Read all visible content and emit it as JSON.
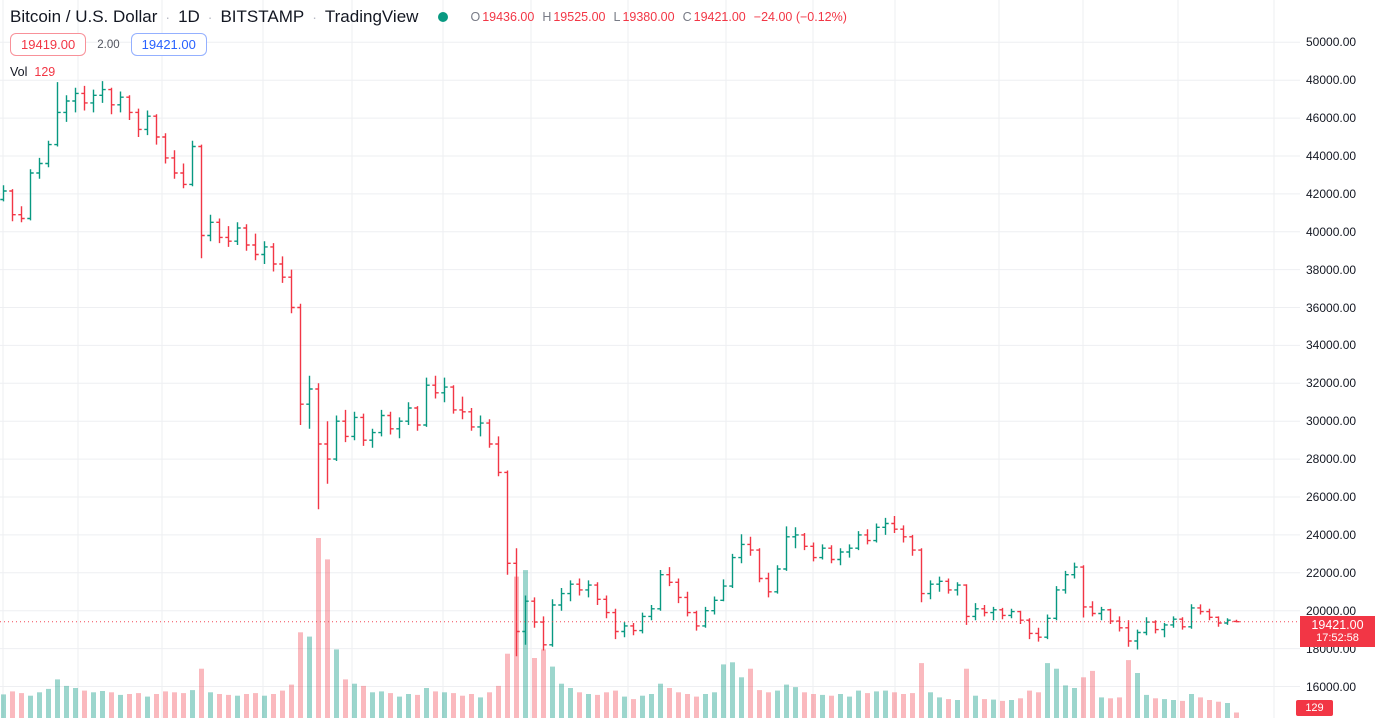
{
  "header": {
    "symbol": "Bitcoin / U.S. Dollar",
    "separator": "·",
    "interval": "1D",
    "exchange": "BITSTAMP",
    "platform": "TradingView",
    "ohlc": {
      "o_label": "O",
      "o": "19436.00",
      "h_label": "H",
      "h": "19525.00",
      "l_label": "L",
      "l": "19380.00",
      "c_label": "C",
      "c": "19421.00",
      "change": "−24.00 (−0.12%)"
    },
    "bid": "19419.00",
    "spread": "2.00",
    "ask": "19421.00",
    "vol_label": "Vol",
    "vol_value": "129"
  },
  "price_axis": {
    "tag_price": "19421.00",
    "tag_countdown": "17:52:58",
    "volume_tag": "129"
  },
  "colors": {
    "up": "#089981",
    "down": "#f23645",
    "volume_up": "rgba(8,153,129,0.40)",
    "volume_down": "rgba(242,54,69,0.35)",
    "grid": "#eeeff2",
    "text": "#131722",
    "accent_blue": "#2962ff",
    "status_dot": "#089981"
  },
  "chart_data": {
    "type": "ohlc-bar",
    "title": "Bitcoin / U.S. Dollar, 1D, BITSTAMP",
    "legend_position": "top-left",
    "grid": true,
    "price_axis_ticks": [
      50000,
      48000,
      46000,
      44000,
      42000,
      40000,
      38000,
      36000,
      34000,
      32000,
      30000,
      28000,
      26000,
      24000,
      22000,
      20000,
      18000,
      16000
    ],
    "ylim": [
      16000,
      50000
    ],
    "last_price": 19421.0,
    "change": -24.0,
    "change_pct": -0.12,
    "countdown": "17:52:58",
    "last_bar_volume": 129,
    "bars_ohlcv": [
      [
        41700,
        42450,
        41600,
        42150,
        550
      ],
      [
        42150,
        42250,
        40550,
        40900,
        620
      ],
      [
        40900,
        41350,
        40500,
        40700,
        580
      ],
      [
        40700,
        43300,
        40600,
        43100,
        520
      ],
      [
        43100,
        43900,
        42800,
        43600,
        600
      ],
      [
        43600,
        44800,
        43400,
        44600,
        680
      ],
      [
        44600,
        47900,
        44500,
        46300,
        900
      ],
      [
        46300,
        47200,
        45800,
        46900,
        750
      ],
      [
        46900,
        47600,
        46300,
        47300,
        700
      ],
      [
        47300,
        47700,
        46400,
        46800,
        640
      ],
      [
        46800,
        47500,
        46300,
        47200,
        600
      ],
      [
        47200,
        47950,
        46800,
        47500,
        630
      ],
      [
        47500,
        47600,
        46200,
        46700,
        600
      ],
      [
        46700,
        47400,
        46300,
        47100,
        540
      ],
      [
        47100,
        47200,
        45900,
        46300,
        560
      ],
      [
        46300,
        46500,
        45000,
        45400,
        580
      ],
      [
        45400,
        46400,
        45100,
        46100,
        500
      ],
      [
        46100,
        46200,
        44600,
        45000,
        560
      ],
      [
        45000,
        45200,
        43600,
        43900,
        620
      ],
      [
        43900,
        44300,
        42800,
        43100,
        600
      ],
      [
        43100,
        43600,
        42300,
        42500,
        580
      ],
      [
        42500,
        44800,
        42400,
        44500,
        650
      ],
      [
        44500,
        44600,
        38600,
        39800,
        1150
      ],
      [
        39800,
        40900,
        39500,
        40500,
        600
      ],
      [
        40500,
        40700,
        39400,
        39700,
        560
      ],
      [
        39700,
        40300,
        39200,
        39500,
        540
      ],
      [
        39500,
        40500,
        39300,
        40200,
        520
      ],
      [
        40200,
        40400,
        39000,
        39300,
        560
      ],
      [
        39300,
        39900,
        38500,
        38800,
        580
      ],
      [
        38800,
        39500,
        38300,
        39200,
        520
      ],
      [
        39200,
        39400,
        37900,
        38300,
        560
      ],
      [
        38300,
        38700,
        37300,
        37600,
        640
      ],
      [
        37600,
        38000,
        35700,
        36000,
        780
      ],
      [
        36000,
        36200,
        29800,
        30900,
        2000
      ],
      [
        30900,
        32400,
        29600,
        31700,
        1900
      ],
      [
        31700,
        32000,
        25350,
        28800,
        4200
      ],
      [
        28800,
        30000,
        26700,
        28000,
        3700
      ],
      [
        28000,
        30300,
        27900,
        30000,
        1600
      ],
      [
        30000,
        30600,
        28900,
        29200,
        900
      ],
      [
        29200,
        30500,
        29000,
        30200,
        800
      ],
      [
        30200,
        30400,
        28700,
        29000,
        750
      ],
      [
        29000,
        29600,
        28600,
        29400,
        600
      ],
      [
        29400,
        30600,
        29200,
        30300,
        620
      ],
      [
        30300,
        30500,
        29300,
        29600,
        580
      ],
      [
        29600,
        30200,
        29100,
        30000,
        500
      ],
      [
        30000,
        31000,
        29800,
        30700,
        560
      ],
      [
        30700,
        30800,
        29500,
        29800,
        540
      ],
      [
        29800,
        32300,
        29700,
        31900,
        700
      ],
      [
        31900,
        32400,
        31200,
        31500,
        620
      ],
      [
        31500,
        32300,
        31000,
        31800,
        600
      ],
      [
        31800,
        31900,
        30400,
        30600,
        580
      ],
      [
        30600,
        31300,
        30100,
        30500,
        520
      ],
      [
        30500,
        30700,
        29500,
        29700,
        560
      ],
      [
        29700,
        30300,
        29200,
        29900,
        480
      ],
      [
        29900,
        30100,
        28600,
        28800,
        600
      ],
      [
        28800,
        29200,
        27100,
        27300,
        750
      ],
      [
        27300,
        27400,
        21900,
        22500,
        1500
      ],
      [
        22500,
        23300,
        17600,
        18900,
        3300
      ],
      [
        18900,
        20800,
        18200,
        20500,
        3450
      ],
      [
        20500,
        20700,
        19100,
        19400,
        1400
      ],
      [
        19400,
        19700,
        17900,
        18200,
        1600
      ],
      [
        18200,
        20600,
        18100,
        20300,
        1200
      ],
      [
        20300,
        21200,
        20000,
        20900,
        800
      ],
      [
        20900,
        21600,
        20500,
        21400,
        700
      ],
      [
        21400,
        21700,
        20800,
        21100,
        600
      ],
      [
        21100,
        21600,
        20700,
        21350,
        560
      ],
      [
        21350,
        21500,
        20300,
        20600,
        540
      ],
      [
        20600,
        20800,
        19600,
        19900,
        600
      ],
      [
        19900,
        20100,
        18500,
        18900,
        640
      ],
      [
        18900,
        19400,
        18600,
        19200,
        500
      ],
      [
        19200,
        19350,
        18700,
        18950,
        440
      ],
      [
        18950,
        19900,
        18800,
        19700,
        520
      ],
      [
        19700,
        20300,
        19500,
        20100,
        560
      ],
      [
        20100,
        22150,
        20000,
        21900,
        800
      ],
      [
        21900,
        22300,
        21300,
        21500,
        700
      ],
      [
        21500,
        21700,
        20400,
        20700,
        600
      ],
      [
        20700,
        21000,
        19700,
        19900,
        560
      ],
      [
        19900,
        20000,
        18950,
        19200,
        500
      ],
      [
        19200,
        20200,
        19100,
        20000,
        560
      ],
      [
        20000,
        20750,
        19800,
        20550,
        600
      ],
      [
        20550,
        21650,
        20500,
        21300,
        1250
      ],
      [
        21300,
        23000,
        21200,
        22800,
        1300
      ],
      [
        22800,
        24030,
        22500,
        23500,
        950
      ],
      [
        23500,
        23900,
        22900,
        23200,
        1150
      ],
      [
        23200,
        23300,
        21500,
        21700,
        650
      ],
      [
        21700,
        22000,
        20700,
        21000,
        600
      ],
      [
        21000,
        22400,
        20900,
        22200,
        640
      ],
      [
        22200,
        24450,
        22100,
        23900,
        780
      ],
      [
        23900,
        24400,
        23300,
        24000,
        720
      ],
      [
        24000,
        24100,
        23200,
        23400,
        600
      ],
      [
        23400,
        23600,
        22600,
        22800,
        560
      ],
      [
        22800,
        23500,
        22700,
        23300,
        540
      ],
      [
        23300,
        23450,
        22500,
        22700,
        520
      ],
      [
        22700,
        23300,
        22400,
        23100,
        560
      ],
      [
        23100,
        23500,
        22800,
        23300,
        500
      ],
      [
        23300,
        24200,
        23200,
        24000,
        640
      ],
      [
        24000,
        24300,
        23500,
        23700,
        580
      ],
      [
        23700,
        24600,
        23600,
        24400,
        620
      ],
      [
        24400,
        24900,
        24000,
        24600,
        640
      ],
      [
        24600,
        25000,
        24100,
        24300,
        600
      ],
      [
        24300,
        24500,
        23600,
        23900,
        560
      ],
      [
        23900,
        24000,
        22900,
        23200,
        580
      ],
      [
        23200,
        23300,
        20450,
        20900,
        1280
      ],
      [
        20900,
        21600,
        20600,
        21400,
        600
      ],
      [
        21400,
        21800,
        21000,
        21550,
        480
      ],
      [
        21550,
        21700,
        20900,
        21100,
        440
      ],
      [
        21100,
        21500,
        20800,
        21350,
        420
      ],
      [
        21350,
        21400,
        19250,
        19700,
        1150
      ],
      [
        19700,
        20400,
        19500,
        20100,
        520
      ],
      [
        20100,
        20300,
        19700,
        19900,
        440
      ],
      [
        19900,
        20200,
        19500,
        20050,
        430
      ],
      [
        20050,
        20150,
        19550,
        19750,
        400
      ],
      [
        19750,
        20100,
        19600,
        19950,
        420
      ],
      [
        19950,
        20000,
        19300,
        19500,
        460
      ],
      [
        19500,
        19600,
        18500,
        18800,
        640
      ],
      [
        18800,
        19100,
        18370,
        18600,
        600
      ],
      [
        18600,
        19800,
        18500,
        19600,
        1280
      ],
      [
        19600,
        21300,
        19500,
        21100,
        1150
      ],
      [
        21100,
        22100,
        20900,
        21900,
        760
      ],
      [
        21900,
        22540,
        21700,
        22300,
        700
      ],
      [
        22300,
        22400,
        19640,
        20200,
        950
      ],
      [
        20200,
        20500,
        19700,
        19850,
        1100
      ],
      [
        19850,
        20200,
        19500,
        20050,
        480
      ],
      [
        20050,
        20100,
        19300,
        19450,
        460
      ],
      [
        19450,
        19700,
        18900,
        19100,
        480
      ],
      [
        19100,
        19500,
        18100,
        18400,
        1350
      ],
      [
        18400,
        19000,
        17950,
        18850,
        1050
      ],
      [
        18850,
        19650,
        18700,
        19400,
        540
      ],
      [
        19400,
        19500,
        18800,
        19000,
        460
      ],
      [
        19000,
        19350,
        18600,
        19250,
        440
      ],
      [
        19250,
        19700,
        19100,
        19550,
        420
      ],
      [
        19550,
        19650,
        19000,
        19150,
        400
      ],
      [
        19150,
        20340,
        19050,
        20150,
        560
      ],
      [
        20150,
        20330,
        19800,
        19950,
        480
      ],
      [
        19950,
        20100,
        19500,
        19650,
        420
      ],
      [
        19650,
        19700,
        19150,
        19350,
        380
      ],
      [
        19350,
        19600,
        19250,
        19500,
        350
      ],
      [
        19436,
        19525,
        19380,
        19421,
        129
      ]
    ]
  }
}
